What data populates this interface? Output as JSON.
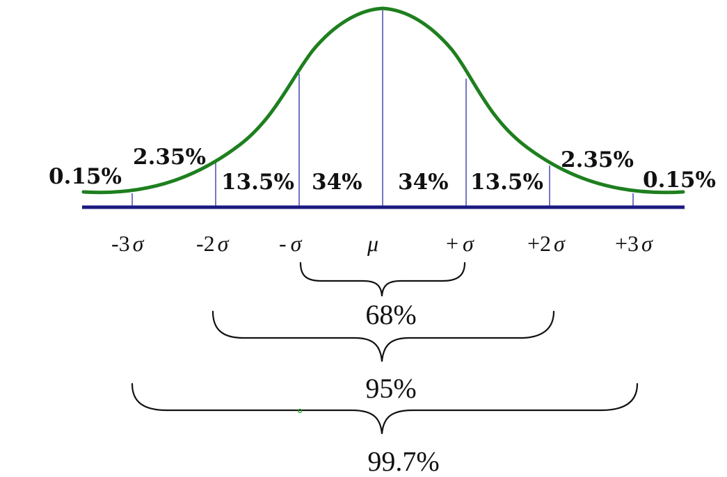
{
  "colors": {
    "curve": "#1e7f1e",
    "baseline": "#1a1a80",
    "divider": "#3a3ab0",
    "text": "#111111"
  },
  "regions": {
    "tail_left": "0.15%",
    "band2_left": "2.35%",
    "band1_left": "13.5%",
    "center_left": "34%",
    "center_right": "34%",
    "band1_right": "13.5%",
    "band2_right": "2.35%",
    "tail_right": "0.15%"
  },
  "axis": {
    "m3": {
      "sign": "-3",
      "sym": "σ"
    },
    "m2": {
      "sign": "-2",
      "sym": "σ"
    },
    "m1": {
      "sign": "-",
      "sym": "σ"
    },
    "mu": "μ",
    "p1": {
      "sign": "+",
      "sym": "σ"
    },
    "p2": {
      "sign": "+2",
      "sym": "σ"
    },
    "p3": {
      "sign": "+3",
      "sym": "σ"
    }
  },
  "braces": {
    "one_sigma": "68%",
    "two_sigma": "95%",
    "three_sigma": "99.7%"
  }
}
